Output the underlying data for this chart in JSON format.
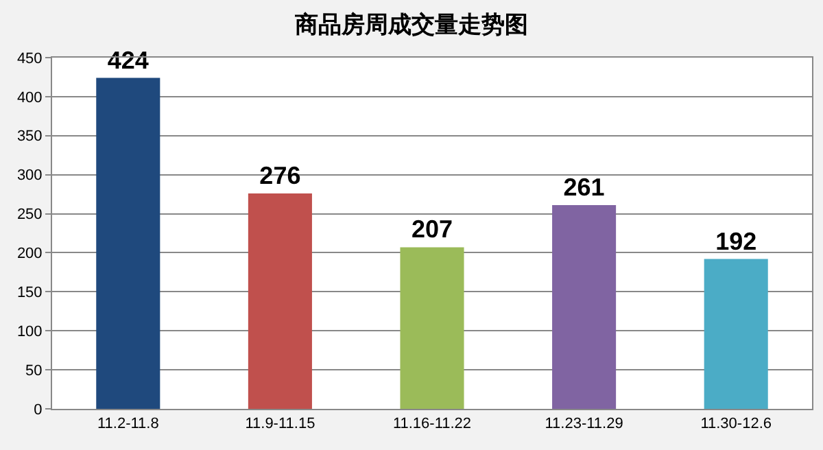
{
  "chart_data": {
    "type": "bar",
    "title": "商品房周成交量走势图",
    "categories": [
      "11.2-11.8",
      "11.9-11.15",
      "11.16-11.22",
      "11.23-11.29",
      "11.30-12.6"
    ],
    "values": [
      424,
      276,
      207,
      261,
      192
    ],
    "colors": [
      "#1f497d",
      "#c0504d",
      "#9bbb59",
      "#8064a2",
      "#4bacc6"
    ],
    "ylim": [
      0,
      450
    ],
    "yticks": [
      0,
      50,
      100,
      150,
      200,
      250,
      300,
      350,
      400,
      450
    ],
    "grid": "y",
    "data_labels": true
  }
}
